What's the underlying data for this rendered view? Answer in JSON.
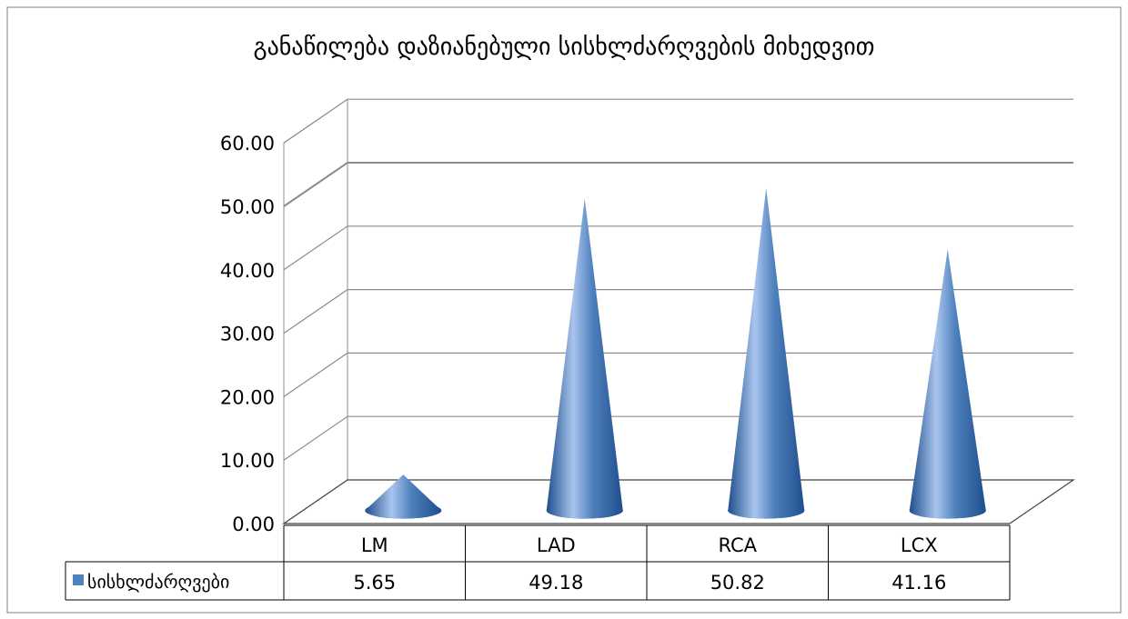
{
  "chart_data": {
    "type": "bar",
    "title": "განაწილება დაზიანებული სისხლძარღვების მიხედვით",
    "categories": [
      "LM",
      "LAD",
      "RCA",
      "LCX"
    ],
    "series": [
      {
        "name": "სისხლძარღვები",
        "values": [
          5.65,
          49.18,
          50.82,
          41.16
        ]
      }
    ],
    "value_labels": [
      "5.65",
      "49.18",
      "50.82",
      "41.16"
    ],
    "y_ticks": [
      "0.00",
      "10.00",
      "20.00",
      "30.00",
      "40.00",
      "50.00",
      "60.00"
    ],
    "ylim": [
      0,
      60
    ],
    "grid": true,
    "shape": "cone",
    "data_table": true,
    "colors": {
      "series": "#4f81bd",
      "series_dark": "#1f4e8c",
      "series_light": "#a9c5ee",
      "grid": "#8c8c8c",
      "axis": "#404040"
    }
  }
}
